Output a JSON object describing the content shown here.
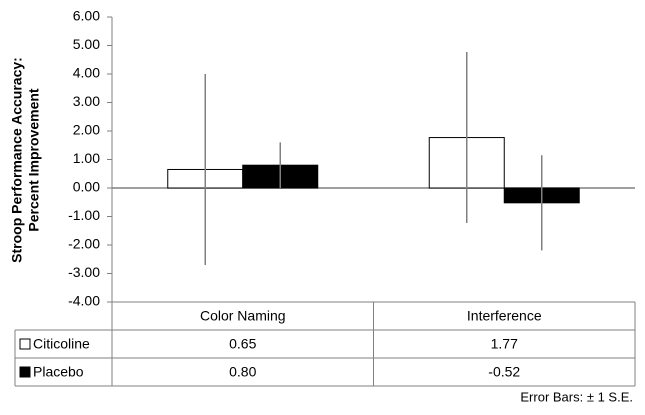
{
  "chart_data": {
    "type": "bar",
    "ylabel": [
      "Stroop Performance Accuracy:",
      "Percent Improvement"
    ],
    "categories": [
      "Color Naming",
      "Interference"
    ],
    "series": [
      {
        "name": "Citicoline",
        "color": "#ffffff",
        "values": [
          0.65,
          1.77
        ],
        "value_labels": [
          "0.65",
          "1.77"
        ],
        "errors": [
          3.35,
          3.0
        ]
      },
      {
        "name": "Placebo",
        "color": "#000000",
        "values": [
          0.8,
          -0.52
        ],
        "value_labels": [
          "0.80",
          "-0.52"
        ],
        "errors": [
          0.8,
          1.67
        ]
      }
    ],
    "ylim": [
      -4,
      6
    ],
    "yticks": [
      {
        "value": -4,
        "label": "-4.00"
      },
      {
        "value": -3,
        "label": "-3.00"
      },
      {
        "value": -2,
        "label": "-2.00"
      },
      {
        "value": -1,
        "label": "-1.00"
      },
      {
        "value": 0,
        "label": "0.00"
      },
      {
        "value": 1,
        "label": "1.00"
      },
      {
        "value": 2,
        "label": "2.00"
      },
      {
        "value": 3,
        "label": "3.00"
      },
      {
        "value": 4,
        "label": "4.00"
      },
      {
        "value": 5,
        "label": "5.00"
      },
      {
        "value": 6,
        "label": "6.00"
      }
    ],
    "footnote": "Error Bars: ± 1 S.E."
  }
}
